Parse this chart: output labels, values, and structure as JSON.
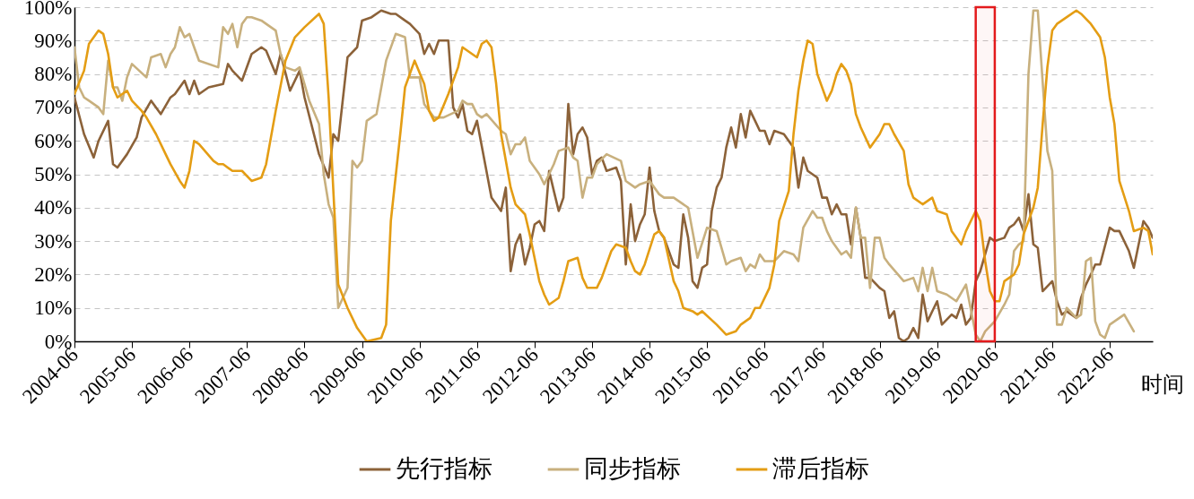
{
  "chart_data": {
    "type": "line",
    "xlabel": "时间",
    "xlim": [
      "2004-06",
      "2023-03"
    ],
    "xticks": [
      "2004-06",
      "2005-06",
      "2006-06",
      "2007-06",
      "2008-06",
      "2009-06",
      "2010-06",
      "2011-06",
      "2012-06",
      "2013-06",
      "2014-06",
      "2015-06",
      "2016-06",
      "2017-06",
      "2018-06",
      "2019-06",
      "2020-06",
      "2021-06",
      "2022-06"
    ],
    "ylim": [
      0,
      100
    ],
    "yticks": [
      {
        "value": 0,
        "label": "0%"
      },
      {
        "value": 10,
        "label": "10%"
      },
      {
        "value": 20,
        "label": "20%"
      },
      {
        "value": 30,
        "label": "30%"
      },
      {
        "value": 40,
        "label": "40%"
      },
      {
        "value": 50,
        "label": "50%"
      },
      {
        "value": 60,
        "label": "60%"
      },
      {
        "value": 70,
        "label": "70%"
      },
      {
        "value": 80,
        "label": "80%"
      },
      {
        "value": 90,
        "label": "90%"
      },
      {
        "value": 100,
        "label": "100%"
      }
    ],
    "grid": "y",
    "legend": "bottom",
    "bands": [
      {
        "axis": "x",
        "from": "2020-02",
        "to": "2020-06",
        "color": "#e31a1c"
      }
    ],
    "series": [
      {
        "name": "先行指标",
        "color": "#8c6239",
        "x": [
          "2004-06",
          "2004-08",
          "2004-10",
          "2004-11",
          "2005-01",
          "2005-02",
          "2005-03",
          "2005-05",
          "2005-07",
          "2005-08",
          "2005-10",
          "2005-12",
          "2006-02",
          "2006-03",
          "2006-05",
          "2006-06",
          "2006-07",
          "2006-08",
          "2006-10",
          "2007-01",
          "2007-02",
          "2007-03",
          "2007-05",
          "2007-07",
          "2007-08",
          "2007-09",
          "2007-10",
          "2007-12",
          "2008-01",
          "2008-03",
          "2008-05",
          "2008-06",
          "2008-09",
          "2008-11",
          "2008-12",
          "2009-01",
          "2009-03",
          "2009-05",
          "2009-06",
          "2009-08",
          "2009-10",
          "2009-12",
          "2010-01",
          "2010-03",
          "2010-04",
          "2010-06",
          "2010-07",
          "2010-08",
          "2010-09",
          "2010-10",
          "2010-12",
          "2011-01",
          "2011-02",
          "2011-03",
          "2011-04",
          "2011-05",
          "2011-06",
          "2011-09",
          "2011-11",
          "2011-12",
          "2012-01",
          "2012-02",
          "2012-03",
          "2012-04",
          "2012-05",
          "2012-06",
          "2012-07",
          "2012-08",
          "2012-09",
          "2012-10",
          "2012-11",
          "2012-12",
          "2013-01",
          "2013-02",
          "2013-03",
          "2013-04",
          "2013-05",
          "2013-06",
          "2013-07",
          "2013-08",
          "2013-09",
          "2013-11",
          "2013-12",
          "2014-01",
          "2014-02",
          "2014-03",
          "2014-04",
          "2014-05",
          "2014-06",
          "2014-07",
          "2014-08",
          "2014-09",
          "2014-11",
          "2014-12",
          "2015-01",
          "2015-02",
          "2015-03",
          "2015-04",
          "2015-05",
          "2015-06",
          "2015-07",
          "2015-08",
          "2015-09",
          "2015-10",
          "2015-11",
          "2015-12",
          "2016-01",
          "2016-02",
          "2016-03",
          "2016-04",
          "2016-05",
          "2016-06",
          "2016-07",
          "2016-08",
          "2016-10",
          "2016-12",
          "2017-01",
          "2017-02",
          "2017-03",
          "2017-05",
          "2017-06",
          "2017-07",
          "2017-08",
          "2017-09",
          "2017-10",
          "2017-11",
          "2017-12",
          "2018-01",
          "2018-02",
          "2018-03",
          "2018-04",
          "2018-06",
          "2018-07",
          "2018-08",
          "2018-09",
          "2018-10",
          "2018-11",
          "2018-12",
          "2019-01",
          "2019-02",
          "2019-03",
          "2019-04",
          "2019-05",
          "2019-06",
          "2019-07",
          "2019-09",
          "2019-10",
          "2019-11",
          "2019-12",
          "2020-01",
          "2020-02",
          "2020-03",
          "2020-05",
          "2020-06",
          "2020-08",
          "2020-09",
          "2020-10",
          "2020-11",
          "2020-12",
          "2021-01",
          "2021-02",
          "2021-03",
          "2021-04",
          "2021-06",
          "2021-07",
          "2021-08",
          "2021-09",
          "2021-10",
          "2021-11",
          "2021-12",
          "2022-01",
          "2022-02",
          "2022-03",
          "2022-04",
          "2022-06",
          "2022-07",
          "2022-08",
          "2022-10",
          "2022-11",
          "2023-01",
          "2023-02",
          "2023-03"
        ],
        "values": [
          73,
          62,
          55,
          60,
          66,
          53,
          52,
          56,
          61,
          67,
          72,
          68,
          73,
          74,
          78,
          74,
          78,
          74,
          76,
          77,
          83,
          81,
          78,
          86,
          87,
          88,
          87,
          80,
          86,
          75,
          81,
          73,
          56,
          49,
          62,
          60,
          85,
          88,
          96,
          97,
          99,
          98,
          98,
          96,
          95,
          92,
          86,
          89,
          86,
          90,
          90,
          70,
          67,
          71,
          63,
          62,
          66,
          43,
          39,
          46,
          21,
          29,
          32,
          23,
          28,
          35,
          36,
          33,
          51,
          45,
          39,
          43,
          71,
          56,
          62,
          64,
          61,
          50,
          54,
          55,
          51,
          52,
          48,
          23,
          41,
          30,
          35,
          38,
          52,
          39,
          33,
          31,
          23,
          22,
          38,
          31,
          18,
          16,
          22,
          23,
          39,
          46,
          49,
          58,
          64,
          58,
          68,
          61,
          69,
          66,
          63,
          63,
          59,
          63,
          62,
          58,
          46,
          55,
          51,
          49,
          43,
          43,
          38,
          41,
          38,
          38,
          29,
          40,
          31,
          19,
          19,
          16,
          15,
          7,
          9,
          1,
          0,
          1,
          4,
          1,
          14,
          6,
          9,
          12,
          5,
          8,
          7,
          11,
          5,
          7,
          18,
          21,
          31,
          30,
          31,
          34,
          35,
          37,
          33,
          44,
          29,
          28,
          15,
          18,
          12,
          8,
          9,
          8,
          7,
          13,
          17,
          20,
          23,
          23,
          34,
          33,
          33,
          27,
          22,
          36,
          34,
          31
        ]
      },
      {
        "name": "同步指标",
        "color": "#c8b07e",
        "x": [
          "2004-06",
          "2004-07",
          "2004-08",
          "2004-09",
          "2004-11",
          "2004-12",
          "2005-01",
          "2005-02",
          "2005-03",
          "2005-04",
          "2005-05",
          "2005-06",
          "2005-09",
          "2005-10",
          "2005-12",
          "2006-01",
          "2006-02",
          "2006-03",
          "2006-04",
          "2006-05",
          "2006-06",
          "2006-07",
          "2006-08",
          "2006-12",
          "2007-01",
          "2007-02",
          "2007-03",
          "2007-04",
          "2007-05",
          "2007-06",
          "2007-07",
          "2007-09",
          "2007-10",
          "2007-12",
          "2008-01",
          "2008-02",
          "2008-04",
          "2008-05",
          "2008-07",
          "2008-09",
          "2008-10",
          "2008-11",
          "2008-12",
          "2009-01",
          "2009-03",
          "2009-04",
          "2009-05",
          "2009-06",
          "2009-07",
          "2009-09",
          "2009-11",
          "2010-01",
          "2010-03",
          "2010-04",
          "2010-06",
          "2010-07",
          "2010-09",
          "2010-11",
          "2011-02",
          "2011-03",
          "2011-04",
          "2011-05",
          "2011-06",
          "2011-07",
          "2011-08",
          "2011-11",
          "2011-12",
          "2012-01",
          "2012-02",
          "2012-03",
          "2012-04",
          "2012-05",
          "2012-07",
          "2012-08",
          "2012-10",
          "2012-11",
          "2013-01",
          "2013-02",
          "2013-03",
          "2013-04",
          "2013-05",
          "2013-06",
          "2013-07",
          "2013-09",
          "2013-12",
          "2014-01",
          "2014-03",
          "2014-04",
          "2014-06",
          "2014-08",
          "2014-09",
          "2014-11",
          "2015-02",
          "2015-04",
          "2015-06",
          "2015-08",
          "2015-10",
          "2015-11",
          "2016-01",
          "2016-02",
          "2016-03",
          "2016-04",
          "2016-05",
          "2016-06",
          "2016-08",
          "2016-10",
          "2016-12",
          "2017-01",
          "2017-02",
          "2017-04",
          "2017-05",
          "2017-06",
          "2017-07",
          "2017-08",
          "2017-10",
          "2017-11",
          "2017-12",
          "2018-01",
          "2018-02",
          "2018-03",
          "2018-04",
          "2018-05",
          "2018-06",
          "2018-07",
          "2018-08",
          "2018-11",
          "2019-01",
          "2019-02",
          "2019-03",
          "2019-04",
          "2019-05",
          "2019-06",
          "2019-08",
          "2019-10",
          "2019-12",
          "2020-02",
          "2020-03",
          "2020-04",
          "2020-06",
          "2020-08",
          "2020-09",
          "2020-10",
          "2020-11",
          "2020-12",
          "2021-01",
          "2021-02",
          "2021-03",
          "2021-05",
          "2021-06",
          "2021-07",
          "2021-08",
          "2021-09",
          "2021-11",
          "2021-12",
          "2022-01",
          "2022-02",
          "2022-03",
          "2022-04",
          "2022-05",
          "2022-06",
          "2022-09",
          "2022-11"
        ],
        "values": [
          88,
          76,
          73,
          72,
          70,
          68,
          84,
          76,
          76,
          72,
          79,
          83,
          79,
          85,
          86,
          82,
          86,
          88,
          94,
          91,
          92,
          88,
          84,
          82,
          94,
          92,
          95,
          88,
          95,
          97,
          97,
          96,
          95,
          93,
          86,
          82,
          81,
          82,
          72,
          65,
          50,
          41,
          37,
          10,
          16,
          54,
          52,
          54,
          66,
          68,
          84,
          92,
          91,
          79,
          79,
          71,
          67,
          67,
          69,
          72,
          71,
          71,
          68,
          67,
          68,
          63,
          62,
          56,
          59,
          59,
          61,
          54,
          50,
          47,
          53,
          57,
          58,
          55,
          54,
          43,
          49,
          49,
          53,
          56,
          54,
          48,
          46,
          47,
          48,
          44,
          43,
          43,
          40,
          25,
          34,
          33,
          23,
          24,
          25,
          21,
          23,
          22,
          26,
          24,
          24,
          27,
          26,
          24,
          34,
          39,
          37,
          37,
          33,
          30,
          26,
          27,
          25,
          40,
          31,
          31,
          16,
          31,
          31,
          25,
          23,
          18,
          19,
          15,
          22,
          15,
          22,
          15,
          14,
          12,
          17,
          2,
          0,
          3,
          6,
          11,
          14,
          27,
          29,
          30,
          80,
          99,
          99,
          57,
          51,
          5,
          5,
          10,
          7,
          8,
          24,
          25,
          6,
          2,
          1,
          5,
          8,
          3
        ]
      },
      {
        "name": "滞后指标",
        "color": "#e49d14",
        "x": [
          "2004-06",
          "2004-08",
          "2004-09",
          "2004-11",
          "2004-12",
          "2005-01",
          "2005-02",
          "2005-03",
          "2005-05",
          "2005-06",
          "2005-08",
          "2005-09",
          "2005-11",
          "2006-01",
          "2006-02",
          "2006-04",
          "2006-05",
          "2006-06",
          "2006-07",
          "2006-08",
          "2006-11",
          "2006-12",
          "2007-01",
          "2007-03",
          "2007-05",
          "2007-07",
          "2007-09",
          "2007-10",
          "2007-12",
          "2008-02",
          "2008-04",
          "2008-06",
          "2008-09",
          "2008-10",
          "2008-11",
          "2008-12",
          "2009-01",
          "2009-03",
          "2009-05",
          "2009-07",
          "2009-10",
          "2009-11",
          "2009-12",
          "2010-02",
          "2010-03",
          "2010-05",
          "2010-07",
          "2010-08",
          "2010-09",
          "2010-10",
          "2010-12",
          "2011-02",
          "2011-03",
          "2011-05",
          "2011-06",
          "2011-07",
          "2011-08",
          "2011-09",
          "2011-10",
          "2011-11",
          "2012-01",
          "2012-02",
          "2012-04",
          "2012-05",
          "2012-07",
          "2012-08",
          "2012-09",
          "2012-11",
          "2012-12",
          "2013-01",
          "2013-03",
          "2013-04",
          "2013-05",
          "2013-07",
          "2013-08",
          "2013-10",
          "2013-11",
          "2014-01",
          "2014-02",
          "2014-03",
          "2014-04",
          "2014-05",
          "2014-07",
          "2014-08",
          "2014-09",
          "2014-11",
          "2014-12",
          "2015-01",
          "2015-03",
          "2015-04",
          "2015-05",
          "2015-08",
          "2015-10",
          "2015-12",
          "2016-01",
          "2016-03",
          "2016-04",
          "2016-05",
          "2016-07",
          "2016-08",
          "2016-09",
          "2016-11",
          "2016-12",
          "2017-01",
          "2017-02",
          "2017-03",
          "2017-04",
          "2017-05",
          "2017-07",
          "2017-08",
          "2017-09",
          "2017-10",
          "2017-11",
          "2017-12",
          "2018-01",
          "2018-02",
          "2018-04",
          "2018-06",
          "2018-07",
          "2018-08",
          "2018-09",
          "2018-11",
          "2018-12",
          "2019-01",
          "2019-03",
          "2019-05",
          "2019-06",
          "2019-08",
          "2019-09",
          "2019-11",
          "2019-12",
          "2020-02",
          "2020-03",
          "2020-04",
          "2020-05",
          "2020-06",
          "2020-07",
          "2020-08",
          "2020-10",
          "2020-11",
          "2020-12",
          "2021-02",
          "2021-03",
          "2021-04",
          "2021-05",
          "2021-06",
          "2021-07",
          "2021-09",
          "2021-11",
          "2021-12",
          "2022-02",
          "2022-04",
          "2022-05",
          "2022-06",
          "2022-07",
          "2022-08",
          "2022-10",
          "2022-11",
          "2023-01",
          "2023-02",
          "2023-03"
        ],
        "values": [
          74,
          81,
          89,
          93,
          92,
          86,
          76,
          73,
          75,
          72,
          69,
          67,
          62,
          56,
          53,
          48,
          46,
          51,
          60,
          59,
          54,
          53,
          53,
          51,
          51,
          48,
          49,
          53,
          69,
          84,
          91,
          94,
          98,
          95,
          73,
          45,
          17,
          10,
          4,
          0,
          1,
          5,
          36,
          63,
          76,
          84,
          77,
          69,
          66,
          67,
          74,
          82,
          88,
          86,
          85,
          89,
          90,
          88,
          77,
          62,
          46,
          41,
          38,
          32,
          18,
          14,
          11,
          13,
          18,
          24,
          25,
          19,
          16,
          16,
          19,
          27,
          29,
          28,
          24,
          21,
          20,
          23,
          32,
          33,
          31,
          18,
          15,
          10,
          9,
          8,
          9,
          5,
          2,
          3,
          5,
          7,
          10,
          10,
          16,
          23,
          36,
          45,
          62,
          75,
          84,
          90,
          89,
          80,
          72,
          75,
          80,
          83,
          81,
          77,
          68,
          64,
          58,
          62,
          65,
          65,
          62,
          57,
          47,
          43,
          41,
          43,
          39,
          38,
          33,
          29,
          33,
          39,
          36,
          24,
          15,
          12,
          12,
          18,
          20,
          23,
          32,
          40,
          46,
          65,
          82,
          93,
          95,
          97,
          99,
          98,
          95,
          91,
          85,
          73,
          65,
          48,
          39,
          33,
          34,
          33,
          26
        ]
      }
    ]
  }
}
